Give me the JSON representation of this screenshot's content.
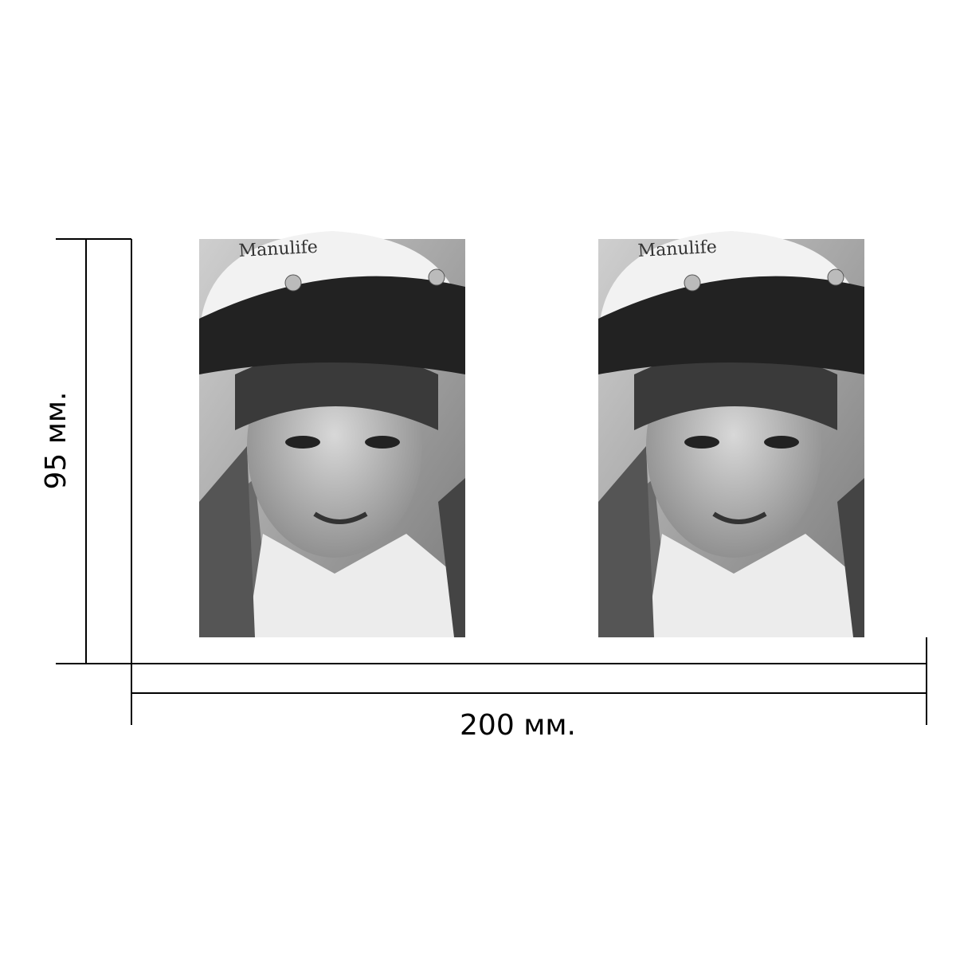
{
  "dimensions": {
    "height": "95 мм.",
    "width": "200 мм."
  },
  "photos": [
    {
      "helmet_text": "Manulife"
    },
    {
      "helmet_text": "Manulife"
    }
  ]
}
